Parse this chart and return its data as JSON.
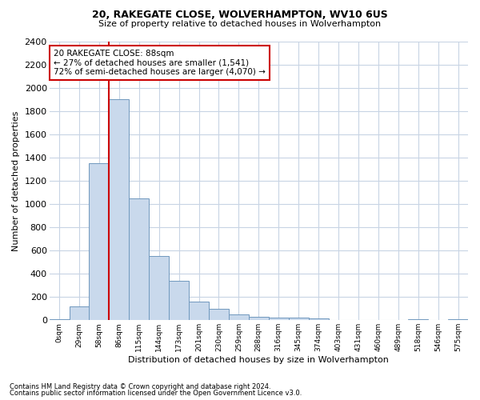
{
  "title1": "20, RAKEGATE CLOSE, WOLVERHAMPTON, WV10 6US",
  "title2": "Size of property relative to detached houses in Wolverhampton",
  "xlabel": "Distribution of detached houses by size in Wolverhampton",
  "ylabel": "Number of detached properties",
  "footnote1": "Contains HM Land Registry data © Crown copyright and database right 2024.",
  "footnote2": "Contains public sector information licensed under the Open Government Licence v3.0.",
  "annotation_line1": "20 RAKEGATE CLOSE: 88sqm",
  "annotation_line2": "← 27% of detached houses are smaller (1,541)",
  "annotation_line3": "72% of semi-detached houses are larger (4,070) →",
  "bar_categories": [
    "0sqm",
    "29sqm",
    "58sqm",
    "86sqm",
    "115sqm",
    "144sqm",
    "173sqm",
    "201sqm",
    "230sqm",
    "259sqm",
    "288sqm",
    "316sqm",
    "345sqm",
    "374sqm",
    "403sqm",
    "431sqm",
    "460sqm",
    "489sqm",
    "518sqm",
    "546sqm",
    "575sqm"
  ],
  "bar_values": [
    10,
    120,
    1350,
    1900,
    1050,
    550,
    340,
    160,
    100,
    50,
    30,
    20,
    20,
    15,
    5,
    5,
    0,
    0,
    10,
    0,
    10
  ],
  "bar_color": "#c9d9ec",
  "bar_edge_color": "#7098be",
  "red_line_x": 3.0,
  "ylim": [
    0,
    2400
  ],
  "ytick_step": 200,
  "background_color": "#ffffff",
  "grid_color": "#c8d4e4",
  "annotation_box_edge": "#cc0000",
  "red_line_color": "#cc0000",
  "fig_width": 6.0,
  "fig_height": 5.0,
  "fig_dpi": 100
}
